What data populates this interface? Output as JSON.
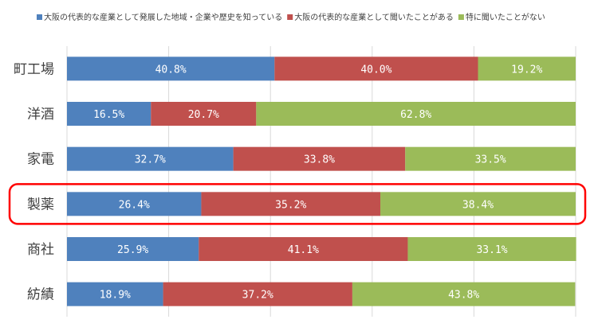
{
  "chart_data": {
    "type": "bar",
    "orientation": "horizontal",
    "stacked": "percent",
    "categories": [
      "町工場",
      "洋酒",
      "家電",
      "製薬",
      "商社",
      "紡績"
    ],
    "series": [
      {
        "name": "大阪の代表的な産業として発展した地域・企業や歴史を知っている",
        "color": "#4F81BD",
        "values": [
          40.8,
          16.5,
          32.7,
          26.4,
          25.9,
          18.9
        ]
      },
      {
        "name": "大阪の代表的な産業として聞いたことがある",
        "color": "#C0504D",
        "values": [
          40.0,
          20.7,
          33.8,
          35.2,
          41.1,
          37.2
        ]
      },
      {
        "name": "特に聞いたことがない",
        "color": "#9BBB59",
        "values": [
          19.2,
          62.8,
          33.5,
          38.4,
          33.1,
          43.8
        ]
      }
    ],
    "data_labels": [
      [
        "40.8%",
        "40.0%",
        "19.2%"
      ],
      [
        "16.5%",
        "20.7%",
        "62.8%"
      ],
      [
        "32.7%",
        "33.8%",
        "33.5%"
      ],
      [
        "26.4%",
        "35.2%",
        "38.4%"
      ],
      [
        "25.9%",
        "41.1%",
        "33.1%"
      ],
      [
        "18.9%",
        "37.2%",
        "43.8%"
      ]
    ],
    "xlim": [
      0,
      100
    ],
    "grid": true,
    "legend_position": "top",
    "highlight": {
      "category": "製薬",
      "color": "#FF0000"
    }
  }
}
